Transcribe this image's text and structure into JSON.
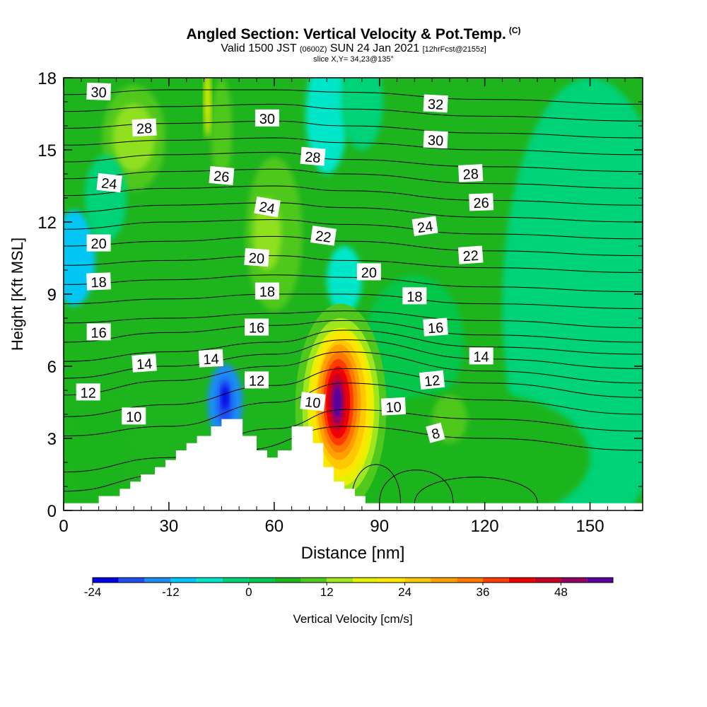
{
  "chart_data": {
    "type": "heatmap",
    "title": "Angled Section: Vertical Velocity & Pot.Temp.",
    "title_tag": "(C)",
    "subtitle_parts": [
      "Valid 1500 JST",
      "(0600Z)",
      "SUN 24 Jan 2021",
      "[12hrFcst@2155z]"
    ],
    "slice_label": "slice X,Y= 34,23@135°",
    "xlabel": "Distance [nm]",
    "ylabel": "Height [Kft MSL]",
    "xlim": [
      0,
      165
    ],
    "ylim": [
      0,
      18
    ],
    "x_ticks": [
      0,
      30,
      60,
      90,
      120,
      150
    ],
    "y_ticks": [
      0,
      3,
      6,
      9,
      12,
      15,
      18
    ],
    "grid": false,
    "colorbar": {
      "label": "Vertical Velocity [cm/s]",
      "tick_values": [
        -24,
        -12,
        0,
        12,
        24,
        36,
        48
      ],
      "levels": [
        -24,
        -20,
        -16,
        -12,
        -8,
        -4,
        0,
        4,
        8,
        12,
        16,
        20,
        24,
        28,
        32,
        36,
        40,
        44,
        48,
        52
      ],
      "colors": [
        "#0000e6",
        "#1e50f0",
        "#1e8cf5",
        "#00c8ff",
        "#00e6c8",
        "#00d278",
        "#00c850",
        "#1eb41e",
        "#50c81e",
        "#a0e61e",
        "#e6f000",
        "#ffe600",
        "#ffc800",
        "#ffa000",
        "#ff7800",
        "#ff3c00",
        "#f00000",
        "#c80028",
        "#960064",
        "#5a00a0"
      ]
    },
    "theta_labels": [
      {
        "text": "30",
        "x": 10,
        "y": 17.4,
        "rot": 2
      },
      {
        "text": "28",
        "x": 23,
        "y": 15.9,
        "rot": -3
      },
      {
        "text": "24",
        "x": 13,
        "y": 13.6,
        "rot": 6
      },
      {
        "text": "20",
        "x": 10,
        "y": 11.1,
        "rot": 0
      },
      {
        "text": "18",
        "x": 10,
        "y": 9.5,
        "rot": -2
      },
      {
        "text": "16",
        "x": 10,
        "y": 7.4,
        "rot": 0
      },
      {
        "text": "14",
        "x": 23,
        "y": 6.1,
        "rot": -4
      },
      {
        "text": "12",
        "x": 7,
        "y": 4.9,
        "rot": 0
      },
      {
        "text": "10",
        "x": 20,
        "y": 3.9,
        "rot": 0
      },
      {
        "text": "30",
        "x": 58,
        "y": 16.3,
        "rot": 0
      },
      {
        "text": "26",
        "x": 45,
        "y": 13.9,
        "rot": 5
      },
      {
        "text": "24",
        "x": 58,
        "y": 12.6,
        "rot": 10
      },
      {
        "text": "20",
        "x": 55,
        "y": 10.5,
        "rot": 4
      },
      {
        "text": "18",
        "x": 58,
        "y": 9.1,
        "rot": 0
      },
      {
        "text": "16",
        "x": 55,
        "y": 7.6,
        "rot": 0
      },
      {
        "text": "14",
        "x": 42,
        "y": 6.3,
        "rot": -3
      },
      {
        "text": "12",
        "x": 55,
        "y": 5.4,
        "rot": 0
      },
      {
        "text": "10",
        "x": 71,
        "y": 4.5,
        "rot": 6
      },
      {
        "text": "28",
        "x": 71,
        "y": 14.7,
        "rot": 5
      },
      {
        "text": "22",
        "x": 74,
        "y": 11.4,
        "rot": 8
      },
      {
        "text": "20",
        "x": 87,
        "y": 9.9,
        "rot": 0
      },
      {
        "text": "18",
        "x": 100,
        "y": 8.9,
        "rot": 0
      },
      {
        "text": "16",
        "x": 106,
        "y": 7.6,
        "rot": -4
      },
      {
        "text": "12",
        "x": 105,
        "y": 5.4,
        "rot": -6
      },
      {
        "text": "10",
        "x": 94,
        "y": 4.3,
        "rot": -3
      },
      {
        "text": "8",
        "x": 106,
        "y": 3.2,
        "rot": -15
      },
      {
        "text": "32",
        "x": 106,
        "y": 16.9,
        "rot": 3
      },
      {
        "text": "30",
        "x": 106,
        "y": 15.4,
        "rot": 3
      },
      {
        "text": "28",
        "x": 116,
        "y": 14.0,
        "rot": -3
      },
      {
        "text": "26",
        "x": 119,
        "y": 12.8,
        "rot": -2
      },
      {
        "text": "24",
        "x": 103,
        "y": 11.8,
        "rot": -8
      },
      {
        "text": "22",
        "x": 116,
        "y": 10.6,
        "rot": -4
      },
      {
        "text": "14",
        "x": 119,
        "y": 6.4,
        "rot": 0
      }
    ],
    "theta_lines": [
      [
        [
          0,
          0.8
        ],
        [
          30,
          1.5
        ],
        [
          50,
          2.5
        ],
        [
          80,
          3.5
        ],
        [
          120,
          3.0
        ],
        [
          165,
          2.5
        ]
      ],
      [
        [
          0,
          1.6
        ],
        [
          30,
          2.2
        ],
        [
          60,
          3.4
        ],
        [
          80,
          4.2
        ],
        [
          120,
          3.8
        ],
        [
          165,
          3.3
        ]
      ],
      [
        [
          0,
          3.1
        ],
        [
          30,
          3.5
        ],
        [
          60,
          4.5
        ],
        [
          80,
          5.3
        ],
        [
          120,
          4.6
        ],
        [
          165,
          4.0
        ]
      ],
      [
        [
          0,
          3.9
        ],
        [
          30,
          4.4
        ],
        [
          60,
          5.2
        ],
        [
          80,
          5.9
        ],
        [
          120,
          5.3
        ],
        [
          165,
          4.7
        ]
      ],
      [
        [
          0,
          4.8
        ],
        [
          30,
          5.4
        ],
        [
          60,
          6.0
        ],
        [
          80,
          6.6
        ],
        [
          120,
          5.8
        ],
        [
          165,
          5.3
        ]
      ],
      [
        [
          0,
          5.5
        ],
        [
          30,
          6.0
        ],
        [
          60,
          6.5
        ],
        [
          80,
          7.1
        ],
        [
          120,
          6.3
        ],
        [
          165,
          5.9
        ]
      ],
      [
        [
          0,
          6.2
        ],
        [
          30,
          6.6
        ],
        [
          60,
          7.0
        ],
        [
          80,
          7.5
        ],
        [
          120,
          6.8
        ],
        [
          165,
          6.5
        ]
      ],
      [
        [
          0,
          7.0
        ],
        [
          30,
          7.4
        ],
        [
          60,
          7.7
        ],
        [
          80,
          7.9
        ],
        [
          120,
          7.3
        ],
        [
          165,
          7.0
        ]
      ],
      [
        [
          0,
          7.8
        ],
        [
          30,
          8.0
        ],
        [
          60,
          8.2
        ],
        [
          80,
          8.3
        ],
        [
          120,
          7.9
        ],
        [
          165,
          7.6
        ]
      ],
      [
        [
          0,
          8.6
        ],
        [
          30,
          8.8
        ],
        [
          60,
          9.0
        ],
        [
          80,
          9.0
        ],
        [
          120,
          8.6
        ],
        [
          165,
          8.4
        ]
      ],
      [
        [
          0,
          9.4
        ],
        [
          30,
          9.6
        ],
        [
          60,
          9.8
        ],
        [
          80,
          9.7
        ],
        [
          120,
          9.3
        ],
        [
          165,
          9.1
        ]
      ],
      [
        [
          0,
          10.2
        ],
        [
          30,
          10.4
        ],
        [
          60,
          10.6
        ],
        [
          80,
          10.4
        ],
        [
          120,
          10.1
        ],
        [
          165,
          9.9
        ]
      ],
      [
        [
          0,
          11.0
        ],
        [
          30,
          11.2
        ],
        [
          60,
          11.4
        ],
        [
          80,
          11.2
        ],
        [
          120,
          10.8
        ],
        [
          165,
          10.6
        ]
      ],
      [
        [
          0,
          11.7
        ],
        [
          30,
          12.0
        ],
        [
          60,
          12.1
        ],
        [
          80,
          11.9
        ],
        [
          120,
          11.5
        ],
        [
          165,
          11.3
        ]
      ],
      [
        [
          0,
          12.4
        ],
        [
          30,
          12.7
        ],
        [
          60,
          12.8
        ],
        [
          80,
          12.6
        ],
        [
          120,
          12.2
        ],
        [
          165,
          12.0
        ]
      ],
      [
        [
          0,
          13.1
        ],
        [
          30,
          13.4
        ],
        [
          60,
          13.5
        ],
        [
          80,
          13.3
        ],
        [
          120,
          12.9
        ],
        [
          165,
          12.7
        ]
      ],
      [
        [
          0,
          13.8
        ],
        [
          30,
          14.1
        ],
        [
          60,
          14.2
        ],
        [
          80,
          14.0
        ],
        [
          120,
          13.6
        ],
        [
          165,
          13.4
        ]
      ],
      [
        [
          0,
          14.5
        ],
        [
          30,
          14.8
        ],
        [
          60,
          14.9
        ],
        [
          80,
          14.6
        ],
        [
          120,
          14.3
        ],
        [
          165,
          14.1
        ]
      ],
      [
        [
          0,
          15.2
        ],
        [
          30,
          15.4
        ],
        [
          60,
          15.5
        ],
        [
          80,
          15.3
        ],
        [
          120,
          15.0
        ],
        [
          165,
          14.8
        ]
      ],
      [
        [
          0,
          15.9
        ],
        [
          30,
          16.1
        ],
        [
          60,
          16.2
        ],
        [
          80,
          16.0
        ],
        [
          120,
          15.7
        ],
        [
          165,
          15.5
        ]
      ],
      [
        [
          0,
          16.6
        ],
        [
          30,
          16.8
        ],
        [
          60,
          16.9
        ],
        [
          80,
          16.7
        ],
        [
          120,
          16.4
        ],
        [
          165,
          16.2
        ]
      ],
      [
        [
          0,
          17.3
        ],
        [
          30,
          17.5
        ],
        [
          60,
          17.5
        ],
        [
          80,
          17.4
        ],
        [
          120,
          17.1
        ],
        [
          165,
          16.9
        ]
      ]
    ],
    "terrain": [
      [
        0,
        0.3
      ],
      [
        10,
        0.3
      ],
      [
        10,
        0.6
      ],
      [
        16,
        0.6
      ],
      [
        16,
        0.9
      ],
      [
        19,
        0.9
      ],
      [
        19,
        1.2
      ],
      [
        22,
        1.2
      ],
      [
        22,
        1.5
      ],
      [
        26,
        1.5
      ],
      [
        26,
        1.8
      ],
      [
        29,
        1.8
      ],
      [
        29,
        2.1
      ],
      [
        32,
        2.1
      ],
      [
        32,
        2.5
      ],
      [
        35,
        2.5
      ],
      [
        35,
        2.8
      ],
      [
        38,
        2.8
      ],
      [
        38,
        3.1
      ],
      [
        42,
        3.1
      ],
      [
        42,
        3.5
      ],
      [
        45,
        3.5
      ],
      [
        45,
        3.8
      ],
      [
        51,
        3.8
      ],
      [
        51,
        3.1
      ],
      [
        55,
        3.1
      ],
      [
        55,
        2.5
      ],
      [
        58,
        2.5
      ],
      [
        58,
        2.2
      ],
      [
        61,
        2.2
      ],
      [
        61,
        2.5
      ],
      [
        65,
        2.5
      ],
      [
        65,
        3.5
      ],
      [
        71,
        3.5
      ],
      [
        71,
        2.8
      ],
      [
        74,
        2.8
      ],
      [
        74,
        1.8
      ],
      [
        77,
        1.8
      ],
      [
        77,
        1.2
      ],
      [
        80,
        1.2
      ],
      [
        80,
        0.9
      ],
      [
        83,
        0.9
      ],
      [
        83,
        0.6
      ],
      [
        86,
        0.6
      ],
      [
        86,
        0.3
      ],
      [
        165,
        0.3
      ],
      [
        165,
        0
      ],
      [
        0,
        0
      ]
    ]
  }
}
